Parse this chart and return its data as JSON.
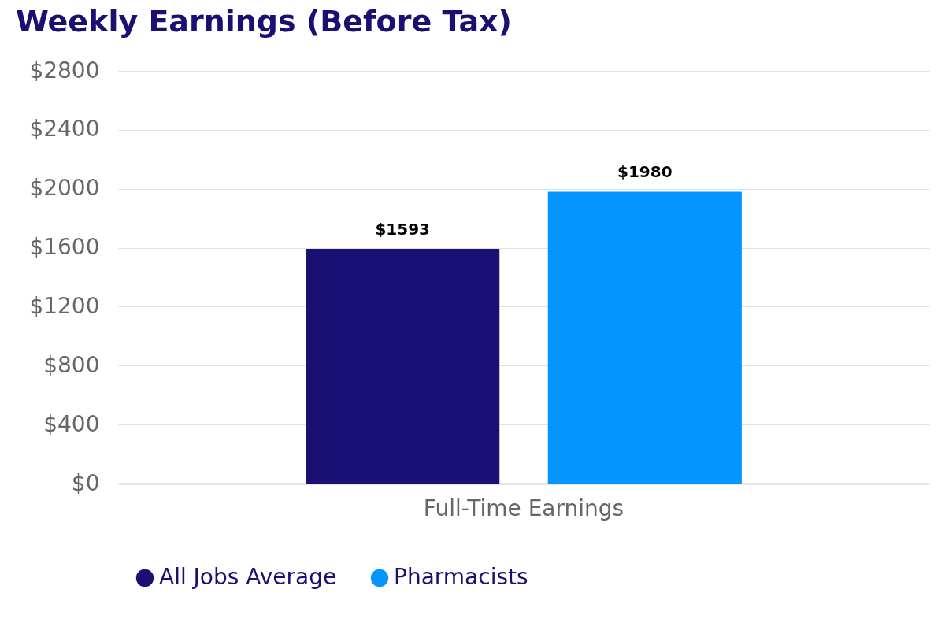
{
  "chart_data": {
    "type": "bar",
    "title": "Weekly Earnings (Before Tax)",
    "categories": [
      "Full-Time Earnings"
    ],
    "series": [
      {
        "name": "All Jobs Average",
        "color": "#1a0f72",
        "values": [
          1593
        ],
        "value_labels": [
          "$1593"
        ]
      },
      {
        "name": "Pharmacists",
        "color": "#0496fe",
        "values": [
          1980
        ],
        "value_labels": [
          "$1980"
        ]
      }
    ],
    "ylim": [
      0,
      2800
    ],
    "yticks": [
      {
        "value": 0,
        "label": "$0"
      },
      {
        "value": 400,
        "label": "$400"
      },
      {
        "value": 800,
        "label": "$800"
      },
      {
        "value": 1200,
        "label": "$1200"
      },
      {
        "value": 1600,
        "label": "$1600"
      },
      {
        "value": 2000,
        "label": "$2000"
      },
      {
        "value": 2400,
        "label": "$2400"
      },
      {
        "value": 2800,
        "label": "$2800"
      }
    ],
    "grid": "y",
    "legend": "bottom"
  }
}
